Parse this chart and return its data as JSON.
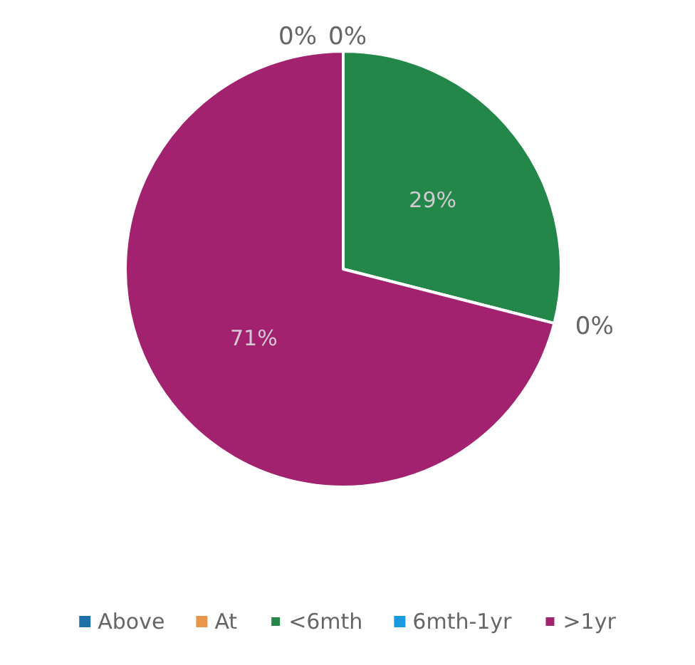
{
  "chart_data": {
    "type": "pie",
    "categories": [
      "Above",
      "At",
      "<6mth",
      "6mth-1yr",
      ">1yr"
    ],
    "values": [
      0,
      0,
      29,
      0,
      71
    ],
    "colors": [
      "#1f6fa8",
      "#e8964a",
      "#23874a",
      "#1a9ae0",
      "#a32270"
    ],
    "value_labels": [
      "0%",
      "0%",
      "29%",
      "0%",
      "71%"
    ],
    "legend": "bottom"
  }
}
